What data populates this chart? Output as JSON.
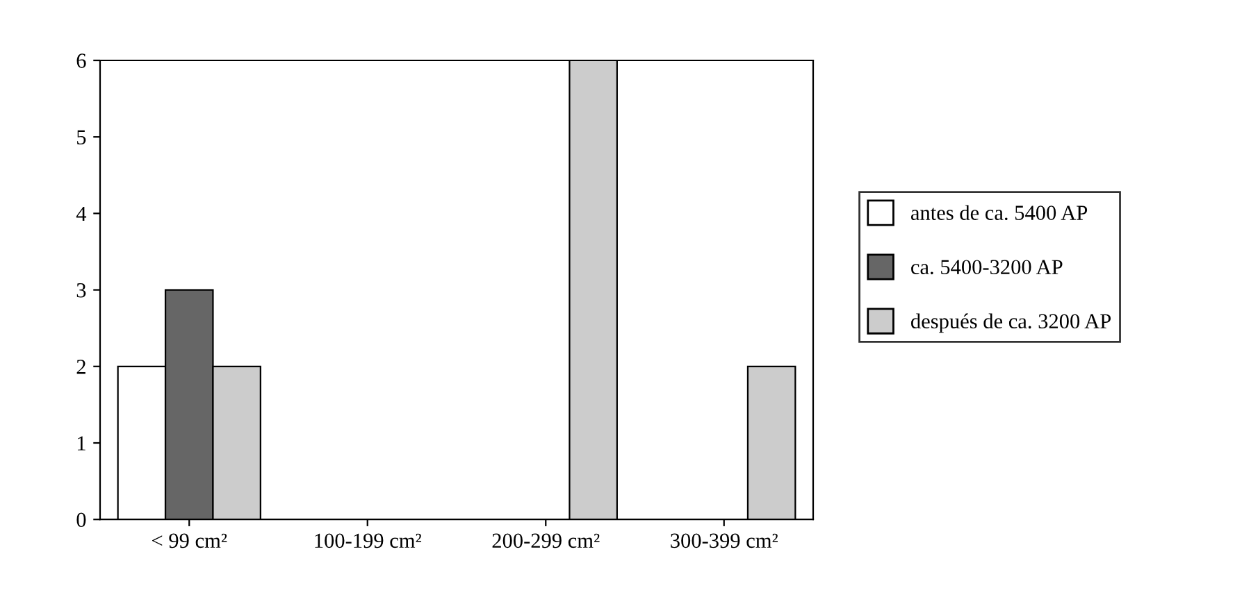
{
  "chart_data": {
    "type": "bar",
    "categories": [
      "< 99 cm²",
      "100-199 cm²",
      "200-299 cm²",
      "300-399 cm²"
    ],
    "series": [
      {
        "name": "antes de ca. 5400 AP",
        "color": "#ffffff",
        "values": [
          2,
          0,
          0,
          0
        ]
      },
      {
        "name": "ca. 5400-3200 AP",
        "color": "#666666",
        "values": [
          3,
          0,
          0,
          0
        ]
      },
      {
        "name": "después de ca. 3200 AP",
        "color": "#cccccc",
        "values": [
          2,
          0,
          6,
          2
        ]
      }
    ],
    "ylim": [
      0,
      6
    ],
    "yticks": [
      0,
      1,
      2,
      3,
      4,
      5,
      6
    ],
    "grid": false,
    "legend": "right"
  }
}
